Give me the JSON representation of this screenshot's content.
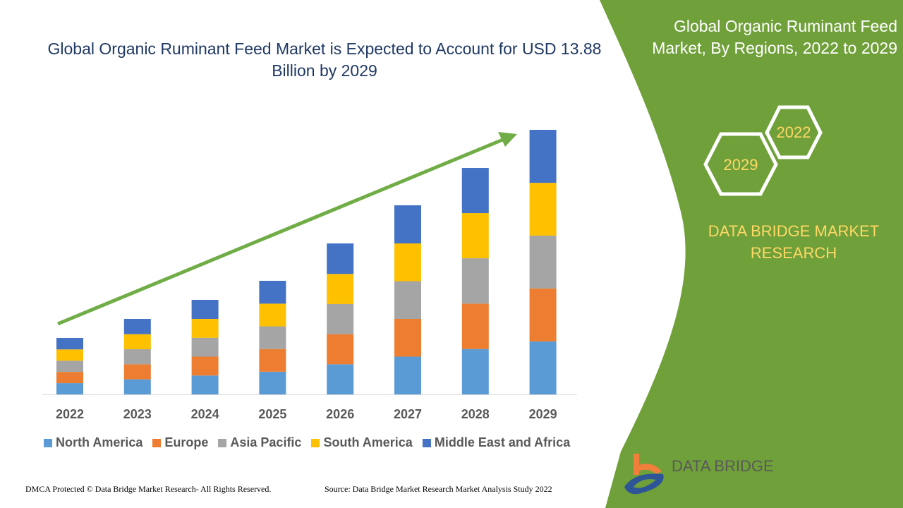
{
  "header": {
    "title": "Global Organic Ruminant Feed Market is Expected to Account for USD 13.88 Billion by 2029"
  },
  "side_panel": {
    "title": "Global Organic Ruminant Feed Market, By Regions, 2022 to 2029",
    "hex_start": "2022",
    "hex_end": "2029",
    "brand": "DATA BRIDGE MARKET RESEARCH",
    "logo_text": "DATA BRIDGE",
    "color": "#70a03a"
  },
  "footer": {
    "left": "DMCA Protected © Data Bridge Market Research- All Rights Reserved.",
    "right": "Source: Data Bridge Market Research Market Analysis Study 2022"
  },
  "chart_data": {
    "type": "bar",
    "stacked": true,
    "title": "Global Organic Ruminant Feed Market is Expected to Account for USD 13.88 Billion by 2029",
    "categories": [
      "2022",
      "2023",
      "2024",
      "2025",
      "2026",
      "2027",
      "2028",
      "2029"
    ],
    "series": [
      {
        "name": "North America",
        "color": "#5b9bd5",
        "values": [
          0.59,
          0.79,
          0.99,
          1.19,
          1.58,
          1.98,
          2.38,
          2.78
        ]
      },
      {
        "name": "Europe",
        "color": "#ed7d31",
        "values": [
          0.59,
          0.79,
          0.99,
          1.19,
          1.58,
          1.98,
          2.38,
          2.78
        ]
      },
      {
        "name": "Asia Pacific",
        "color": "#a5a5a5",
        "values": [
          0.59,
          0.79,
          0.99,
          1.19,
          1.58,
          1.98,
          2.38,
          2.77
        ]
      },
      {
        "name": "South America",
        "color": "#ffc000",
        "values": [
          0.59,
          0.79,
          0.99,
          1.19,
          1.58,
          1.98,
          2.37,
          2.77
        ]
      },
      {
        "name": "Middle East and Africa",
        "color": "#4472c4",
        "values": [
          0.6,
          0.8,
          1.0,
          1.2,
          1.6,
          2.0,
          2.37,
          2.78
        ]
      }
    ],
    "ylim": [
      0,
      13.88
    ],
    "grid": false,
    "legend": "bottom",
    "trend_arrow": true,
    "trend_color": "#70ad47"
  }
}
